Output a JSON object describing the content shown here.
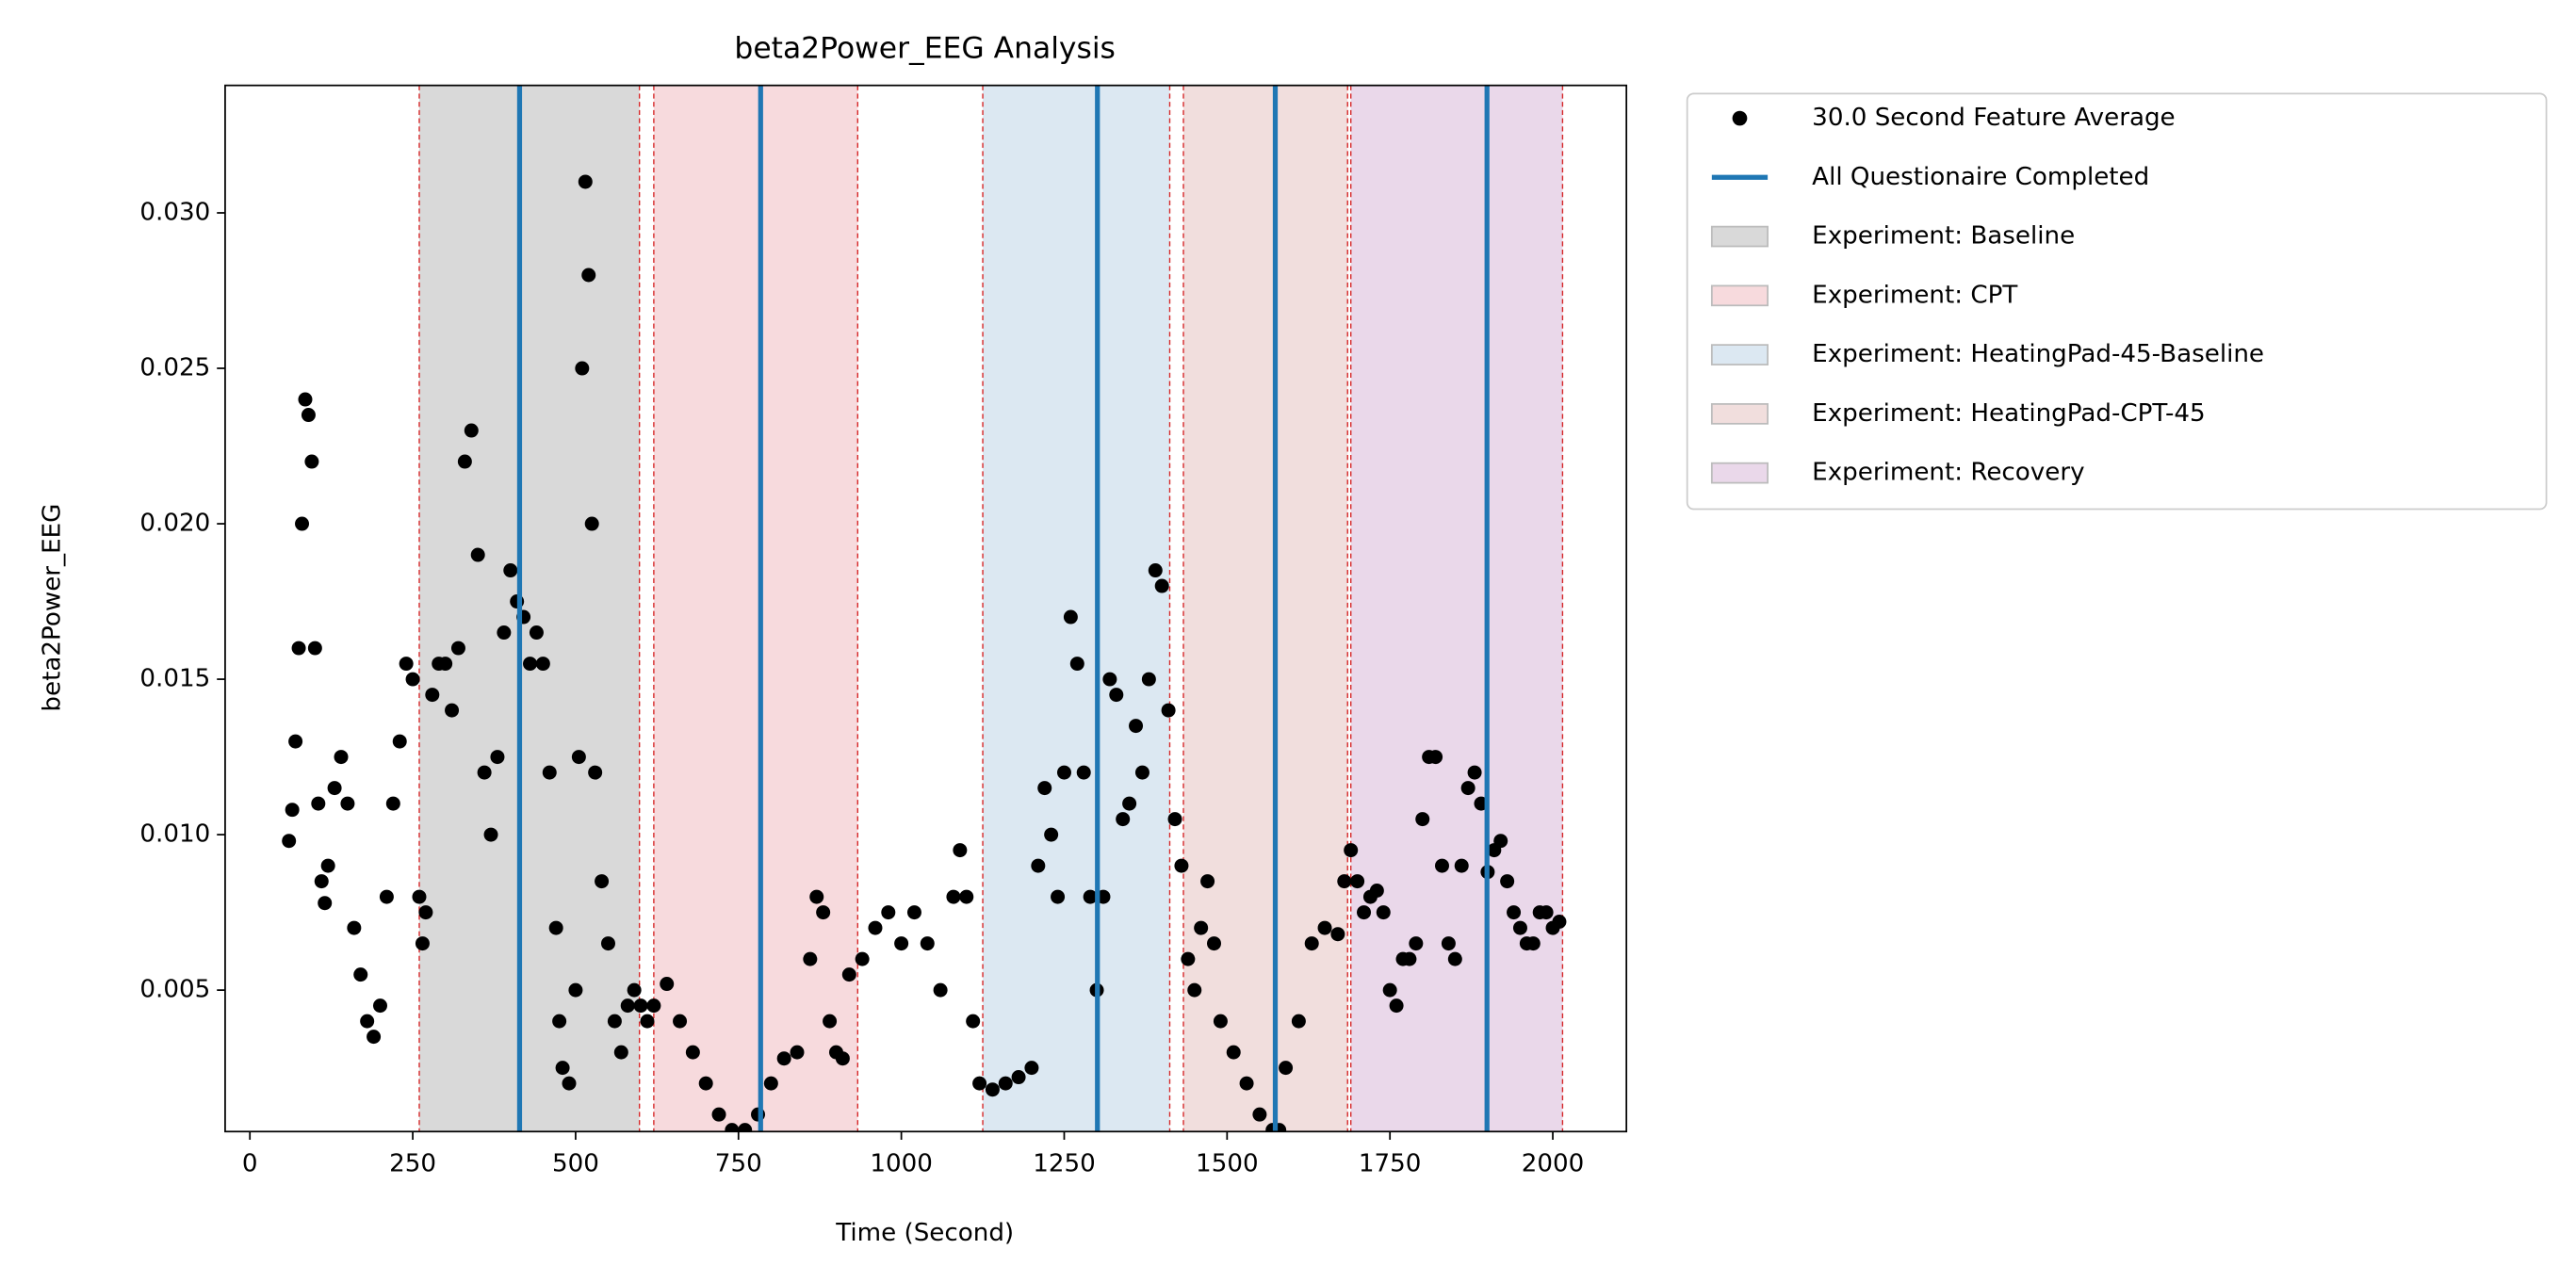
{
  "chart_data": {
    "type": "scatter",
    "title": "beta2Power_EEG Analysis",
    "xlabel": "Time (Second)",
    "ylabel": "beta2Power_EEG",
    "xlim": [
      -38,
      2113
    ],
    "ylim": [
      0.00045,
      0.0341
    ],
    "xticks": [
      0,
      250,
      500,
      750,
      1000,
      1250,
      1500,
      1750,
      2000
    ],
    "yticks": [
      0.005,
      {
        "value": 0.01,
        "label": "0.010"
      },
      0.015,
      {
        "value": 0.02,
        "label": "0.020"
      },
      0.025,
      {
        "value": 0.03,
        "label": "0.030"
      }
    ],
    "legend": "outside-upper-right",
    "spans": [
      {
        "name": "Experiment: Baseline",
        "color": "#d9d9d9",
        "start": 260,
        "end": 598
      },
      {
        "name": "Experiment: CPT",
        "color": "#f7dadd",
        "start": 620,
        "end": 933
      },
      {
        "name": "Experiment: HeatingPad-45-Baseline",
        "color": "#dce8f2",
        "start": 1125,
        "end": 1412
      },
      {
        "name": "Experiment: HeatingPad-CPT-45",
        "color": "#f1dedd",
        "start": 1433,
        "end": 1685
      },
      {
        "name": "Experiment: Recovery",
        "color": "#ead8ea",
        "start": 1690,
        "end": 2015
      }
    ],
    "vlines": {
      "name": "All Questionaire Completed",
      "color": "#1f77b4",
      "x": [
        414,
        784,
        1301,
        1574,
        1899
      ]
    },
    "series": [
      {
        "name": "30.0 Second Feature Average",
        "color": "#000000",
        "x": [
          60,
          65,
          70,
          75,
          80,
          85,
          90,
          95,
          100,
          105,
          110,
          115,
          120,
          130,
          140,
          150,
          160,
          170,
          180,
          190,
          200,
          210,
          220,
          230,
          240,
          250,
          260,
          265,
          270,
          280,
          290,
          300,
          310,
          320,
          330,
          340,
          350,
          360,
          370,
          380,
          390,
          400,
          410,
          420,
          430,
          440,
          450,
          460,
          470,
          475,
          480,
          490,
          500,
          505,
          510,
          515,
          520,
          525,
          530,
          540,
          550,
          560,
          570,
          580,
          590,
          600,
          610,
          620,
          640,
          660,
          680,
          700,
          720,
          740,
          760,
          780,
          800,
          820,
          840,
          860,
          870,
          880,
          890,
          900,
          910,
          920,
          940,
          960,
          980,
          1000,
          1020,
          1040,
          1060,
          1080,
          1090,
          1100,
          1110,
          1120,
          1140,
          1160,
          1180,
          1200,
          1210,
          1220,
          1230,
          1240,
          1250,
          1260,
          1270,
          1280,
          1290,
          1300,
          1310,
          1320,
          1330,
          1340,
          1350,
          1360,
          1370,
          1380,
          1390,
          1400,
          1410,
          1420,
          1430,
          1440,
          1450,
          1460,
          1470,
          1480,
          1490,
          1510,
          1530,
          1550,
          1570,
          1580,
          1590,
          1610,
          1630,
          1650,
          1670,
          1680,
          1690,
          1700,
          1710,
          1720,
          1730,
          1740,
          1750,
          1760,
          1770,
          1780,
          1790,
          1800,
          1810,
          1820,
          1830,
          1840,
          1850,
          1860,
          1870,
          1880,
          1890,
          1900,
          1910,
          1920,
          1930,
          1940,
          1950,
          1960,
          1970,
          1980,
          1990,
          2000,
          2010
        ],
        "values": [
          0.0098,
          0.0108,
          0.013,
          0.016,
          0.02,
          0.024,
          0.0235,
          0.022,
          0.016,
          0.011,
          0.0085,
          0.0078,
          0.009,
          0.0115,
          0.0125,
          0.011,
          0.007,
          0.0055,
          0.004,
          0.0035,
          0.0045,
          0.008,
          0.011,
          0.013,
          0.0155,
          0.015,
          0.008,
          0.0065,
          0.0075,
          0.0145,
          0.0155,
          0.0155,
          0.014,
          0.016,
          0.022,
          0.023,
          0.019,
          0.012,
          0.01,
          0.0125,
          0.0165,
          0.0185,
          0.0175,
          0.017,
          0.0155,
          0.0165,
          0.0155,
          0.012,
          0.007,
          0.004,
          0.0025,
          0.002,
          0.005,
          0.0125,
          0.025,
          0.031,
          0.028,
          0.02,
          0.012,
          0.0085,
          0.0065,
          0.004,
          0.003,
          0.0045,
          0.005,
          0.0045,
          0.004,
          0.0045,
          0.0052,
          0.004,
          0.003,
          0.002,
          0.001,
          0.0005,
          0.0005,
          0.001,
          0.002,
          0.0028,
          0.003,
          0.006,
          0.008,
          0.0075,
          0.004,
          0.003,
          0.0028,
          0.0055,
          0.006,
          0.007,
          0.0075,
          0.0065,
          0.0075,
          0.0065,
          0.005,
          0.008,
          0.0095,
          0.008,
          0.004,
          0.002,
          0.0018,
          0.002,
          0.0022,
          0.0025,
          0.009,
          0.0115,
          0.01,
          0.008,
          0.012,
          0.017,
          0.0155,
          0.012,
          0.008,
          0.005,
          0.008,
          0.015,
          0.0145,
          0.0105,
          0.011,
          0.0135,
          0.012,
          0.015,
          0.0185,
          0.018,
          0.014,
          0.0105,
          0.009,
          0.006,
          0.005,
          0.007,
          0.0085,
          0.0065,
          0.004,
          0.003,
          0.002,
          0.001,
          0.0005,
          0.0005,
          0.0025,
          0.004,
          0.0065,
          0.007,
          0.0068,
          0.0085,
          0.0095,
          0.0085,
          0.0075,
          0.008,
          0.0082,
          0.0075,
          0.005,
          0.0045,
          0.006,
          0.006,
          0.0065,
          0.0105,
          0.0125,
          0.0125,
          0.009,
          0.0065,
          0.006,
          0.009,
          0.0115,
          0.012,
          0.011,
          0.0088,
          0.0095,
          0.0098,
          0.0085,
          0.0075,
          0.007,
          0.0065,
          0.0065,
          0.0075,
          0.0075,
          0.007,
          0.0072
        ]
      }
    ]
  }
}
